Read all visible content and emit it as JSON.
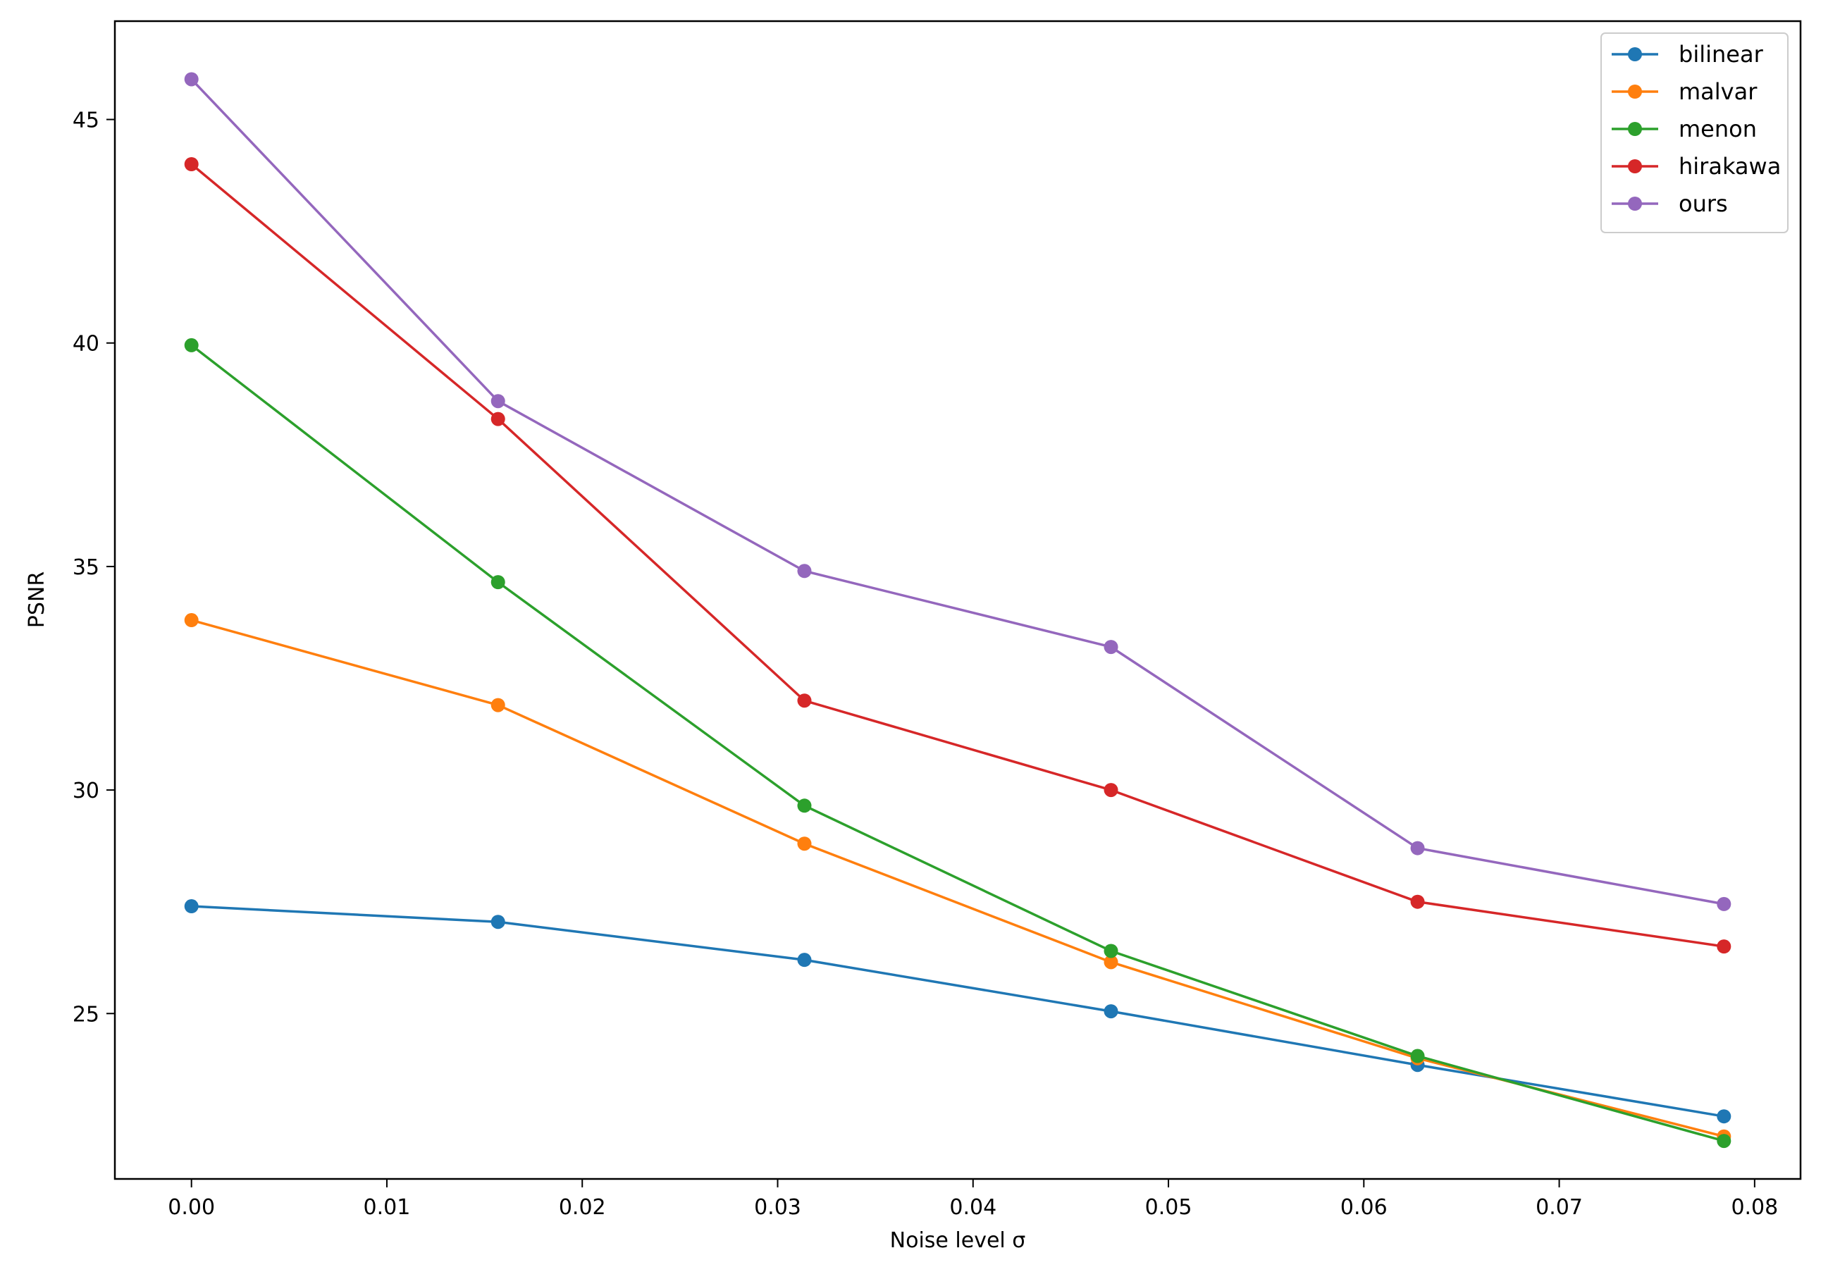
{
  "chart_data": {
    "type": "line",
    "title": "",
    "xlabel": "Noise level σ",
    "ylabel": "PSNR",
    "xlim": [
      -0.00392,
      0.08235
    ],
    "ylim": [
      21.3,
      47.2
    ],
    "x_ticks": [
      0.0,
      0.01,
      0.02,
      0.03,
      0.04,
      0.05,
      0.06,
      0.07,
      0.08
    ],
    "x_tick_labels": [
      "0.00",
      "0.01",
      "0.02",
      "0.03",
      "0.04",
      "0.05",
      "0.06",
      "0.07",
      "0.08"
    ],
    "y_ticks": [
      25,
      30,
      35,
      40,
      45
    ],
    "y_tick_labels": [
      "25",
      "30",
      "35",
      "40",
      "45"
    ],
    "x": [
      0.0,
      0.01569,
      0.03137,
      0.04706,
      0.06275,
      0.07843
    ],
    "grid": false,
    "legend_position": "top-right",
    "series": [
      {
        "name": "bilinear",
        "color": "#1f77b4",
        "values": [
          27.4,
          27.05,
          26.2,
          25.05,
          23.85,
          22.7
        ]
      },
      {
        "name": "malvar",
        "color": "#ff7f0e",
        "values": [
          33.8,
          31.9,
          28.8,
          26.15,
          24.0,
          22.25
        ]
      },
      {
        "name": "menon",
        "color": "#2ca02c",
        "values": [
          39.95,
          34.65,
          29.65,
          26.4,
          24.05,
          22.15
        ]
      },
      {
        "name": "hirakawa",
        "color": "#d62728",
        "values": [
          44.0,
          38.3,
          32.0,
          30.0,
          27.5,
          26.5
        ]
      },
      {
        "name": "ours",
        "color": "#9467bd",
        "values": [
          45.9,
          38.7,
          34.9,
          33.2,
          28.7,
          27.45
        ]
      }
    ]
  }
}
